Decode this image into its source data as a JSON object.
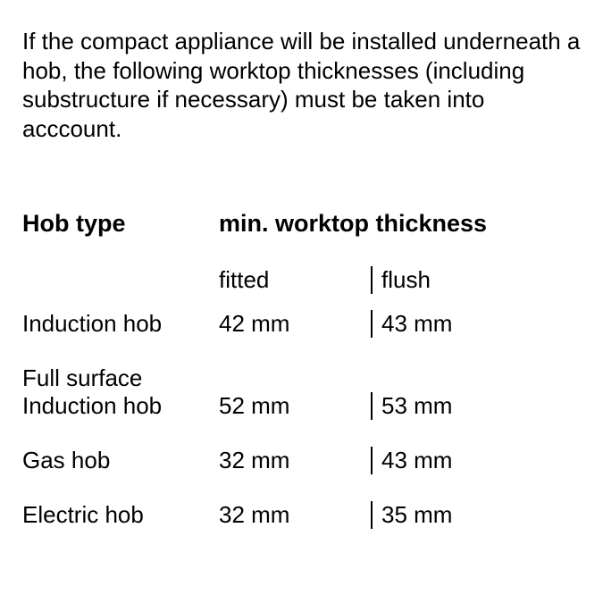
{
  "intro": "If the compact appliance will be installed underneath a hob, the following worktop thicknesses (including substructure if necessary) must be taken into acccount.",
  "headers": {
    "col1": "Hob type",
    "col2": "min. worktop thickness",
    "sub_fitted": "fitted",
    "sub_flush": "flush"
  },
  "rows": [
    {
      "label": "Induction hob",
      "fitted": "42 mm",
      "flush": "43 mm"
    },
    {
      "label": "Full surface\nInduction hob",
      "fitted": "52 mm",
      "flush": "53 mm"
    },
    {
      "label": "Gas hob",
      "fitted": "32 mm",
      "flush": "43 mm"
    },
    {
      "label": "Electric hob",
      "fitted": "32 mm",
      "flush": "35 mm"
    }
  ]
}
